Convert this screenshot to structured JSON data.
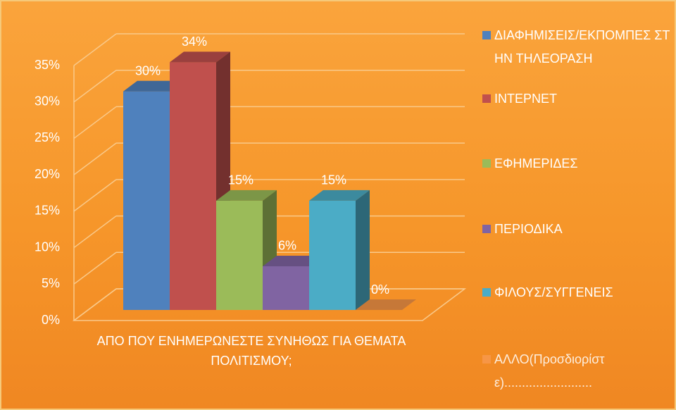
{
  "chart_data": {
    "type": "bar3d",
    "categories": [
      "ΑΠΟ ΠΟΥ ΕΝΗΜΕΡΩΝΕΣΤΕ ΣΥΝΗΘΩΣ ΓΙΑ ΘΕΜΑΤΑ ΠΟΛΙΤΙΣΜΟΥ;"
    ],
    "series": [
      {
        "name": "ΔΙΑΦΗΜΙΣΕΙΣ/ΕΚΠΟΜΠΕΣ ΣΤΗΝ ΤΗΛΕΟΡΑΣΗ",
        "color": "#4f81bd",
        "values": [
          30
        ],
        "value_labels": [
          "30%"
        ]
      },
      {
        "name": "ΙΝΤΕΡΝΕΤ",
        "color": "#c0504d",
        "values": [
          34
        ],
        "value_labels": [
          "34%"
        ]
      },
      {
        "name": "ΕΦΗΜΕΡΙΔΕΣ",
        "color": "#9bbb59",
        "values": [
          15
        ],
        "value_labels": [
          "15%"
        ]
      },
      {
        "name": "ΠΕΡΙΟΔΙΚΑ",
        "color": "#8064a2",
        "values": [
          6
        ],
        "value_labels": [
          "6%"
        ]
      },
      {
        "name": "ΦΙΛΟΥΣ/ΣΥΓΓΕΝΕΙΣ",
        "color": "#4bacc6",
        "values": [
          15
        ],
        "value_labels": [
          "15%"
        ]
      },
      {
        "name": "ΑΛΛΟ(Προσδιορίστε).........................",
        "color": "#f79646",
        "values": [
          0
        ],
        "value_labels": [
          "0%"
        ]
      }
    ],
    "ylim": [
      0,
      35
    ],
    "yticks": [
      {
        "value": 0,
        "label": "0%"
      },
      {
        "value": 5,
        "label": "5%"
      },
      {
        "value": 10,
        "label": "10%"
      },
      {
        "value": 15,
        "label": "15%"
      },
      {
        "value": 20,
        "label": "20%"
      },
      {
        "value": 25,
        "label": "25%"
      },
      {
        "value": 30,
        "label": "30%"
      },
      {
        "value": 35,
        "label": "35%"
      }
    ],
    "grid": true
  }
}
